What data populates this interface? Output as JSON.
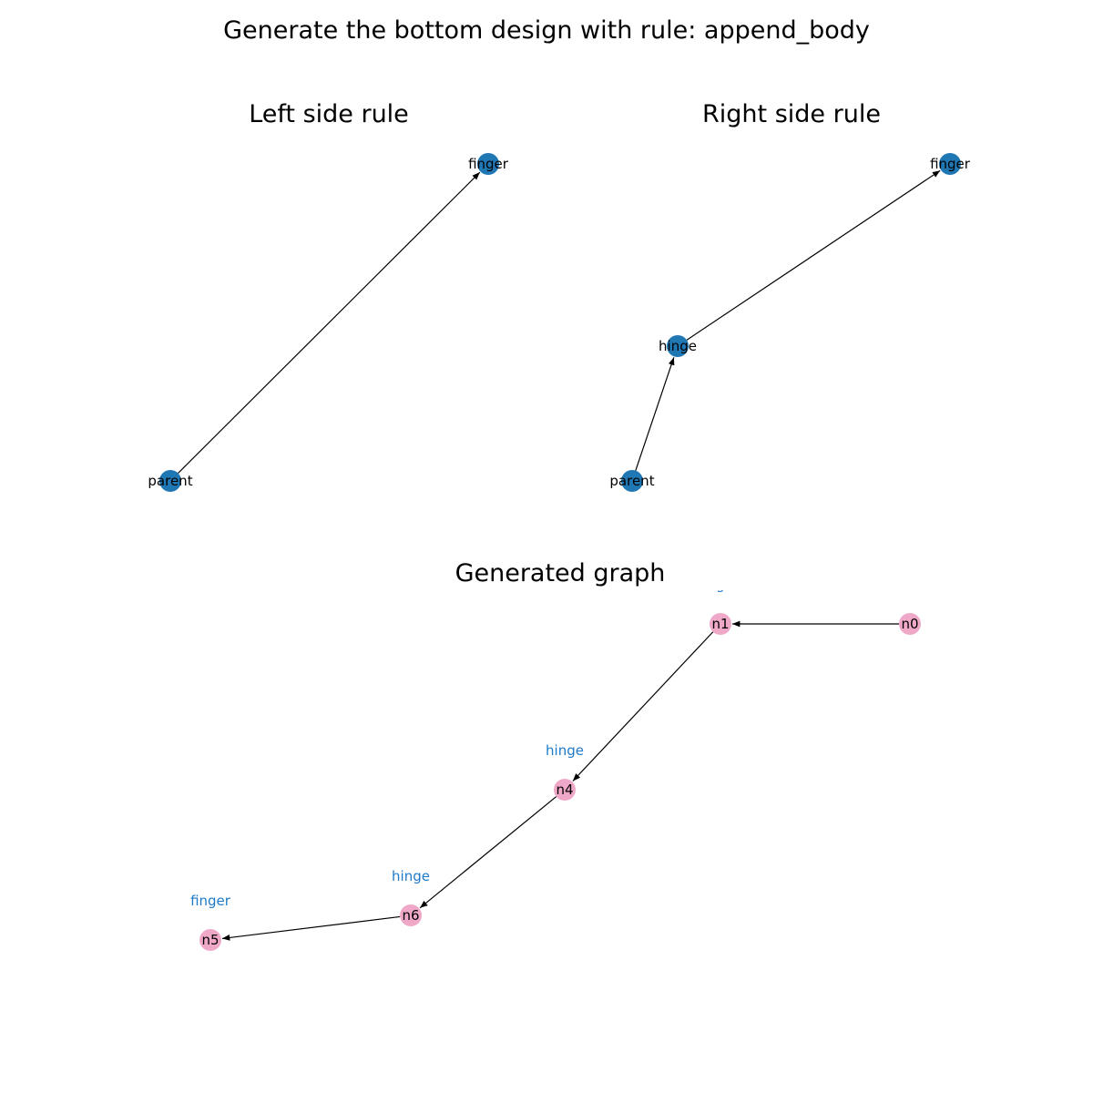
{
  "figure": {
    "title": "Generate the bottom design with rule: append_body"
  },
  "panels": {
    "left": {
      "title": "Left side rule",
      "nodes": [
        {
          "id": "parent",
          "label": "parent"
        },
        {
          "id": "finger",
          "label": "finger"
        }
      ],
      "edges": [
        {
          "from": "parent",
          "to": "finger"
        }
      ]
    },
    "right": {
      "title": "Right side rule",
      "nodes": [
        {
          "id": "parent",
          "label": "parent"
        },
        {
          "id": "hinge",
          "label": "hinge"
        },
        {
          "id": "finger",
          "label": "finger"
        }
      ],
      "edges": [
        {
          "from": "parent",
          "to": "hinge"
        },
        {
          "from": "hinge",
          "to": "finger"
        }
      ]
    },
    "generated": {
      "title": "Generated graph",
      "nodes": [
        {
          "id": "n0",
          "label": "n0",
          "type": ""
        },
        {
          "id": "n1",
          "label": "n1",
          "type": "g"
        },
        {
          "id": "n4",
          "label": "n4",
          "type": "hinge"
        },
        {
          "id": "n6",
          "label": "n6",
          "type": "hinge"
        },
        {
          "id": "n5",
          "label": "n5",
          "type": "finger"
        }
      ],
      "edges": [
        {
          "from": "n0",
          "to": "n1"
        },
        {
          "from": "n1",
          "to": "n4"
        },
        {
          "from": "n4",
          "to": "n6"
        },
        {
          "from": "n6",
          "to": "n5"
        }
      ]
    }
  },
  "colors": {
    "rule_node": "#1f77b4",
    "generated_node": "#f0a8c8",
    "type_label": "#1f7ac8",
    "edge": "#000000"
  }
}
